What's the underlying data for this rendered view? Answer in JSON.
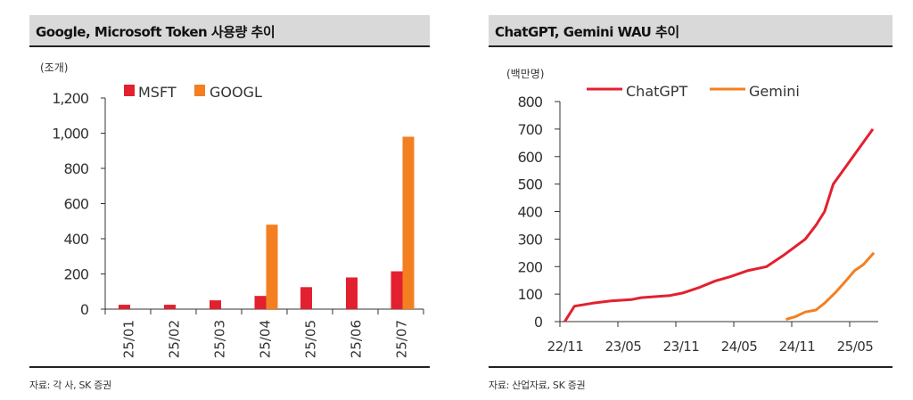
{
  "colors": {
    "red": "#e3202f",
    "orange": "#f47f20"
  },
  "chart_data": [
    {
      "type": "bar",
      "title": "Google, Microsoft Token 사용량 추이",
      "unit": "(조개)",
      "categories": [
        "25/01",
        "25/02",
        "25/03",
        "25/04",
        "25/05",
        "25/06",
        "25/07"
      ],
      "series": [
        {
          "name": "MSFT",
          "color": "#e3202f",
          "values": [
            25,
            25,
            50,
            75,
            125,
            180,
            215
          ]
        },
        {
          "name": "GOOGL",
          "color": "#f47f20",
          "values": [
            null,
            null,
            null,
            480,
            null,
            null,
            980
          ]
        }
      ],
      "yticks": [
        0,
        200,
        400,
        600,
        800,
        1000,
        1200
      ],
      "ytick_labels": [
        "0",
        "200",
        "400",
        "600",
        "800",
        "1,000",
        "1,200"
      ],
      "ylim": [
        0,
        1200
      ],
      "legend": "top-left",
      "source": "자료: 각 사, SK 증권"
    },
    {
      "type": "line",
      "title": "ChatGPT, Gemini WAU 추이",
      "unit": "(백만명)",
      "x_unit": "months since 22/11",
      "xticks": [
        0,
        6,
        12,
        18,
        24,
        30
      ],
      "xtick_labels": [
        "22/11",
        "23/05",
        "23/11",
        "24/05",
        "24/11",
        "25/05"
      ],
      "xlim": [
        0,
        33
      ],
      "yticks": [
        0,
        100,
        200,
        300,
        400,
        500,
        600,
        700,
        800
      ],
      "ytick_labels": [
        "0",
        "100",
        "200",
        "300",
        "400",
        "500",
        "600",
        "700",
        "800"
      ],
      "ylim": [
        0,
        800
      ],
      "series": [
        {
          "name": "ChatGPT",
          "color": "#e3202f",
          "points": [
            [
              0.5,
              0
            ],
            [
              1.5,
              56
            ],
            [
              3.4,
              67
            ],
            [
              5.3,
              75
            ],
            [
              7.4,
              80
            ],
            [
              8.4,
              87
            ],
            [
              11.4,
              95
            ],
            [
              12.7,
              104
            ],
            [
              14.5,
              125
            ],
            [
              16.1,
              148
            ],
            [
              17.6,
              163
            ],
            [
              19.4,
              185
            ],
            [
              21.4,
              200
            ],
            [
              23.1,
              240
            ],
            [
              25.4,
              300
            ],
            [
              26.5,
              350
            ],
            [
              27.4,
              400
            ],
            [
              28.3,
              500
            ],
            [
              32.4,
              700
            ]
          ]
        },
        {
          "name": "Gemini",
          "color": "#f47f20",
          "points": [
            [
              23.4,
              8
            ],
            [
              24.4,
              18
            ],
            [
              25.4,
              35
            ],
            [
              26.5,
              42
            ],
            [
              27.4,
              67
            ],
            [
              28.5,
              105
            ],
            [
              29.6,
              148
            ],
            [
              30.5,
              185
            ],
            [
              31.4,
              207
            ],
            [
              32.5,
              250
            ]
          ]
        }
      ],
      "legend": "top",
      "source": "자료: 산업자료, SK 증권"
    }
  ]
}
